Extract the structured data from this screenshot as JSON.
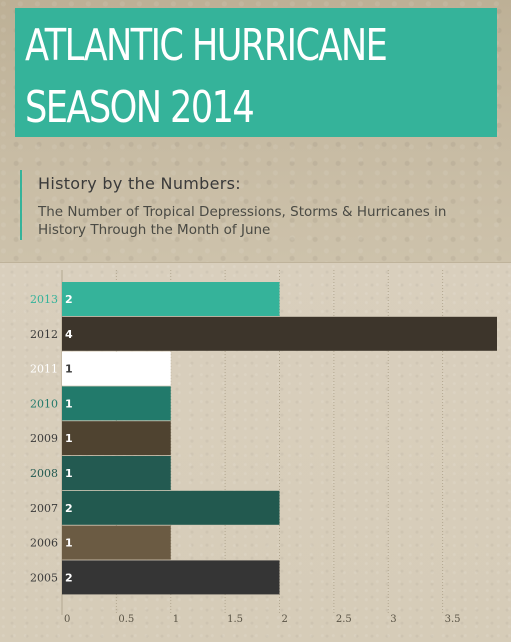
{
  "header": {
    "title_line1": "ATLANTIC HURRICANE",
    "title_line2": "SEASON 2014",
    "accent_color": "#35b39a"
  },
  "subheader": {
    "title": "History by the Numbers:",
    "text": "The Number of Tropical Depressions, Storms & Hurricanes in History Through the Month of June"
  },
  "chart_data": {
    "type": "bar",
    "orientation": "horizontal",
    "categories": [
      "2013",
      "2012",
      "2011",
      "2010",
      "2009",
      "2008",
      "2007",
      "2006",
      "2005"
    ],
    "values": [
      2,
      4,
      1,
      1,
      1,
      1,
      2,
      1,
      2
    ],
    "bar_colors": [
      "#35b39a",
      "#3d352b",
      "#ffffff",
      "#227a6b",
      "#4f4330",
      "#235a51",
      "#22594f",
      "#6b5b43",
      "#353535"
    ],
    "label_colors": [
      "#35b39a",
      "#3a3a3a",
      "#ffffff",
      "#227a6b",
      "#3a3a3a",
      "#235a51",
      "#3a3a3a",
      "#3a3a3a",
      "#3a3a3a"
    ],
    "value_label_colors": [
      "#ffffff",
      "#ffffff",
      "#3a3a3a",
      "#ffffff",
      "#ffffff",
      "#ffffff",
      "#ffffff",
      "#ffffff",
      "#ffffff"
    ],
    "x_ticks": [
      "0",
      "0.5",
      "1",
      "1.5",
      "2",
      "2.5",
      "3",
      "3.5"
    ],
    "xlim": [
      0,
      4
    ],
    "grid": true
  }
}
